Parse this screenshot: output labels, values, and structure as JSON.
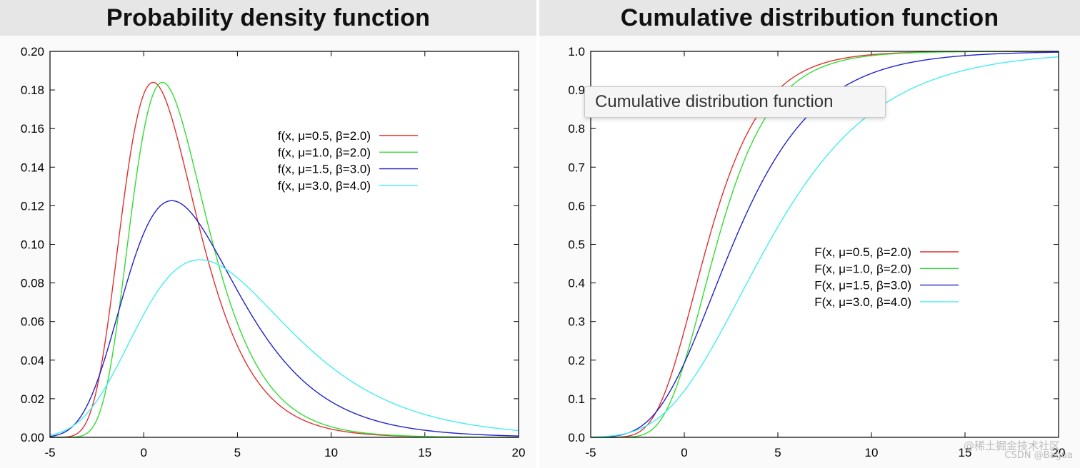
{
  "chart_data": [
    {
      "type": "line",
      "title": "Probability density function",
      "xlabel": "",
      "ylabel": "",
      "xlim": [
        -5,
        20
      ],
      "ylim": [
        0,
        0.2
      ],
      "xticks": [
        "-5",
        "0",
        "5",
        "10",
        "15",
        "20"
      ],
      "yticks": [
        "0.00",
        "0.02",
        "0.04",
        "0.06",
        "0.08",
        "0.10",
        "0.12",
        "0.14",
        "0.16",
        "0.18",
        "0.20"
      ],
      "legend_position": "top-right",
      "series": [
        {
          "name": "f(x, μ=0.5, β=2.0)",
          "mu": 0.5,
          "beta": 2.0,
          "color": "#e03030"
        },
        {
          "name": "f(x, μ=1.0, β=2.0)",
          "mu": 1.0,
          "beta": 2.0,
          "color": "#33dd33"
        },
        {
          "name": "f(x, μ=1.5, β=3.0)",
          "mu": 1.5,
          "beta": 3.0,
          "color": "#2222cc"
        },
        {
          "name": "f(x, μ=3.0, β=4.0)",
          "mu": 3.0,
          "beta": 4.0,
          "color": "#44eeee"
        }
      ]
    },
    {
      "type": "line",
      "title": "Cumulative distribution function",
      "xlabel": "",
      "ylabel": "",
      "xlim": [
        -5,
        20
      ],
      "ylim": [
        0,
        1
      ],
      "xticks": [
        "-5",
        "0",
        "5",
        "10",
        "15",
        "20"
      ],
      "yticks": [
        "0.0",
        "0.1",
        "0.2",
        "0.3",
        "0.4",
        "0.5",
        "0.6",
        "0.7",
        "0.8",
        "0.9",
        "1.0"
      ],
      "legend_position": "center-right",
      "series": [
        {
          "name": "F(x, μ=0.5, β=2.0)",
          "mu": 0.5,
          "beta": 2.0,
          "color": "#e03030"
        },
        {
          "name": "F(x, μ=1.0, β=2.0)",
          "mu": 1.0,
          "beta": 2.0,
          "color": "#33dd33"
        },
        {
          "name": "F(x, μ=1.5, β=3.0)",
          "mu": 1.5,
          "beta": 3.0,
          "color": "#2222cc"
        },
        {
          "name": "F(x, μ=3.0, β=4.0)",
          "mu": 3.0,
          "beta": 4.0,
          "color": "#44eeee"
        }
      ]
    }
  ],
  "tooltip": {
    "text": "Cumulative distribution function"
  },
  "watermark": {
    "line1": "@稀土掘金技术社区",
    "line2": "CSDN @Bagua"
  }
}
